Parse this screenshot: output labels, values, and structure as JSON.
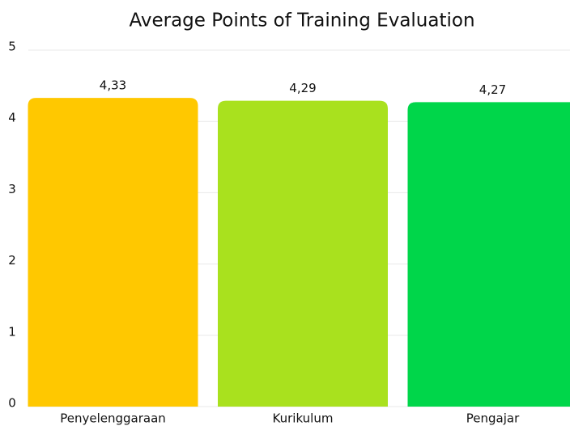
{
  "chart_data": {
    "type": "bar",
    "title": "Average Points of Training Evaluation",
    "categories": [
      "Penyelenggaraan",
      "Kurikulum",
      "Pengajar"
    ],
    "values": [
      4.33,
      4.29,
      4.27
    ],
    "value_labels": [
      "4,33",
      "4,29",
      "4,27"
    ],
    "colors": [
      "#ffc800",
      "#a9e11e",
      "#00d64a"
    ],
    "ylim": [
      0,
      5
    ],
    "yticks": [
      0,
      1,
      2,
      3,
      4,
      5
    ],
    "grid": true
  }
}
